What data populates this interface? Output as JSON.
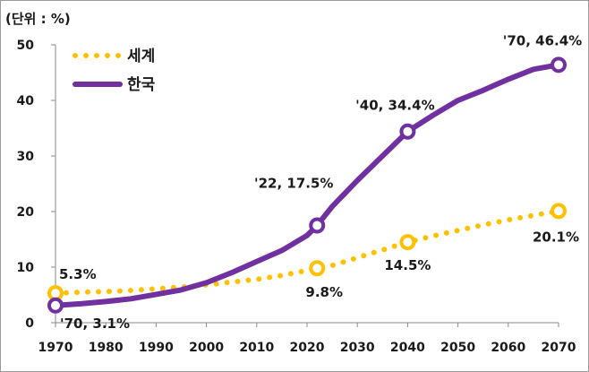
{
  "chart_data": {
    "type": "line",
    "unit_label": "(단위 : %)",
    "xlim": [
      1970,
      2070
    ],
    "ylim": [
      0,
      50
    ],
    "x_ticks": [
      1970,
      1980,
      1990,
      2000,
      2010,
      2020,
      2030,
      2040,
      2050,
      2060,
      2070
    ],
    "y_ticks": [
      0,
      10,
      20,
      30,
      40,
      50
    ],
    "grid": false,
    "legend_position": "top-left",
    "colors": {
      "world": "#FFC000",
      "korea": "#7030A0"
    },
    "series": [
      {
        "name": "세계",
        "key": "world",
        "style": "dotted",
        "x": [
          1970,
          1975,
          1980,
          1985,
          1990,
          1995,
          2000,
          2005,
          2010,
          2015,
          2020,
          2022,
          2025,
          2030,
          2035,
          2040,
          2045,
          2050,
          2055,
          2060,
          2065,
          2070
        ],
        "values": [
          5.3,
          5.5,
          5.6,
          5.8,
          6.1,
          6.4,
          6.8,
          7.3,
          7.8,
          8.5,
          9.4,
          9.8,
          10.3,
          11.7,
          13.1,
          14.5,
          15.6,
          16.6,
          17.6,
          18.5,
          19.3,
          20.1
        ],
        "markers": [
          {
            "x": 1970,
            "y": 5.3,
            "label": "5.3%"
          },
          {
            "x": 2022,
            "y": 9.8,
            "label": "9.8%"
          },
          {
            "x": 2040,
            "y": 14.5,
            "label": "14.5%"
          },
          {
            "x": 2070,
            "y": 20.1,
            "label": "20.1%"
          }
        ]
      },
      {
        "name": "한국",
        "key": "korea",
        "style": "solid",
        "x": [
          1970,
          1975,
          1980,
          1985,
          1990,
          1995,
          2000,
          2005,
          2010,
          2015,
          2020,
          2022,
          2025,
          2030,
          2035,
          2040,
          2045,
          2050,
          2055,
          2060,
          2065,
          2070
        ],
        "values": [
          3.1,
          3.4,
          3.8,
          4.3,
          5.1,
          5.9,
          7.2,
          9.0,
          11.0,
          13.0,
          15.7,
          17.5,
          20.9,
          25.6,
          30.0,
          34.4,
          37.3,
          40.0,
          41.8,
          43.8,
          45.6,
          46.4
        ],
        "markers": [
          {
            "x": 1970,
            "y": 3.1,
            "label": "'70, 3.1%"
          },
          {
            "x": 2022,
            "y": 17.5,
            "label": "'22, 17.5%"
          },
          {
            "x": 2040,
            "y": 34.4,
            "label": "'40, 34.4%"
          },
          {
            "x": 2070,
            "y": 46.4,
            "label": "'70, 46.4%"
          }
        ]
      }
    ]
  }
}
